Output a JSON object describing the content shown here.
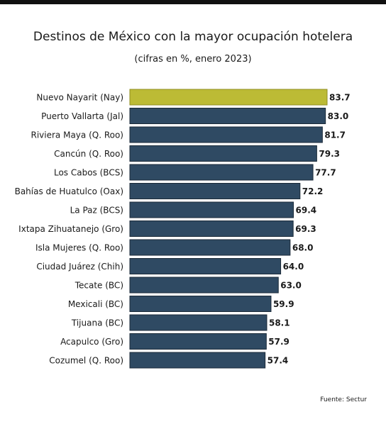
{
  "chart_data": {
    "type": "bar",
    "orientation": "horizontal",
    "title": "Destinos de México con la mayor ocupación hotelera",
    "subtitle": "(cifras en %, enero 2023)",
    "categories": [
      "Nuevo Nayarit (Nay)",
      "Puerto Vallarta (Jal)",
      "Riviera Maya (Q. Roo)",
      "Cancún (Q. Roo)",
      "Los Cabos (BCS)",
      "Bahías de Huatulco (Oax)",
      "La Paz (BCS)",
      "Ixtapa Zihuatanejo (Gro)",
      "Isla Mujeres (Q. Roo)",
      "Ciudad Juárez (Chih)",
      "Tecate (BC)",
      "Mexicali (BC)",
      "Tijuana (BC)",
      "Acapulco (Gro)",
      "Cozumel (Q. Roo)"
    ],
    "values": [
      83.7,
      83.0,
      81.7,
      79.3,
      77.7,
      72.2,
      69.4,
      69.3,
      68.0,
      64.0,
      63.0,
      59.9,
      58.1,
      57.9,
      57.4
    ],
    "value_labels": [
      "83.7",
      "83.0",
      "81.7",
      "79.3",
      "77.7",
      "72.2",
      "69.4",
      "69.3",
      "68.0",
      "64.0",
      "63.0",
      "59.9",
      "58.1",
      "57.9",
      "57.4"
    ],
    "xlim": [
      0,
      83.7
    ],
    "grid": false,
    "legend": "none",
    "colors": {
      "highlight": "#bcbb35",
      "bar": "#2f4a63",
      "bar_border": "#1b2a38",
      "text": "#1a1a1a"
    }
  },
  "source": "Fuente: Sectur"
}
